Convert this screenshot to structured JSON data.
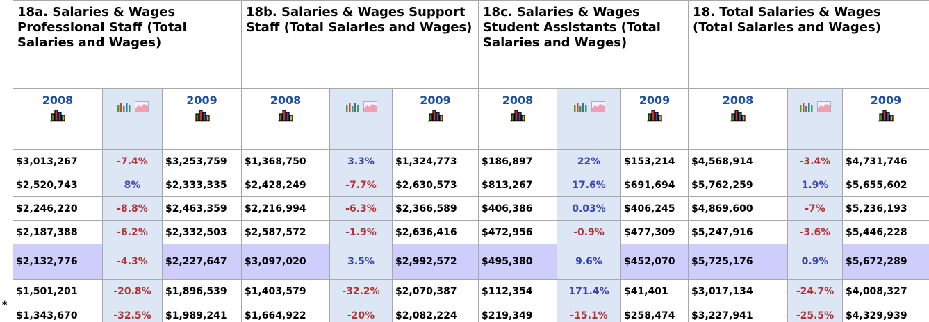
{
  "footnote": "*",
  "groups": [
    {
      "title": "18a. Salaries & Wages Professional Staff (Total Salaries and Wages)",
      "years": [
        "2008",
        "2009"
      ]
    },
    {
      "title": "18b. Salaries & Wages Support Staff (Total Salaries and Wages)",
      "years": [
        "2008",
        "2009"
      ]
    },
    {
      "title": "18c. Salaries & Wages Student Assistants (Total Salaries and Wages)",
      "years": [
        "2008",
        "2009"
      ]
    },
    {
      "title": "18. Total Salaries & Wages (Total Salaries and Wages)",
      "years": [
        "2008",
        "2009"
      ]
    }
  ],
  "rows": [
    [
      "$3,013,267",
      "-7.4%",
      "$3,253,759",
      "$1,368,750",
      "3.3%",
      "$1,324,773",
      "$186,897",
      "22%",
      "$153,214",
      "$4,568,914",
      "-3.4%",
      "$4,731,746"
    ],
    [
      "$2,520,743",
      "8%",
      "$2,333,335",
      "$2,428,249",
      "-7.7%",
      "$2,630,573",
      "$813,267",
      "17.6%",
      "$691,694",
      "$5,762,259",
      "1.9%",
      "$5,655,602"
    ],
    [
      "$2,246,220",
      "-8.8%",
      "$2,463,359",
      "$2,216,994",
      "-6.3%",
      "$2,366,589",
      "$406,386",
      "0.03%",
      "$406,245",
      "$4,869,600",
      "-7%",
      "$5,236,193"
    ],
    [
      "$2,187,388",
      "-6.2%",
      "$2,332,503",
      "$2,587,572",
      "-1.9%",
      "$2,636,416",
      "$472,956",
      "-0.9%",
      "$477,309",
      "$5,247,916",
      "-3.6%",
      "$5,446,228"
    ],
    [
      "$2,132,776",
      "-4.3%",
      "$2,227,647",
      "$3,097,020",
      "3.5%",
      "$2,992,572",
      "$495,380",
      "9.6%",
      "$452,070",
      "$5,725,176",
      "0.9%",
      "$5,672,289"
    ],
    [
      "$1,501,201",
      "-20.8%",
      "$1,896,539",
      "$1,403,579",
      "-32.2%",
      "$2,070,387",
      "$112,354",
      "171.4%",
      "$41,401",
      "$3,017,134",
      "-24.7%",
      "$4,008,327"
    ],
    [
      "$1,343,670",
      "-32.5%",
      "$1,989,241",
      "$1,664,922",
      "-20%",
      "$2,082,224",
      "$219,349",
      "-15.1%",
      "$258,474",
      "$3,227,941",
      "-25.5%",
      "$4,329,939"
    ]
  ]
}
